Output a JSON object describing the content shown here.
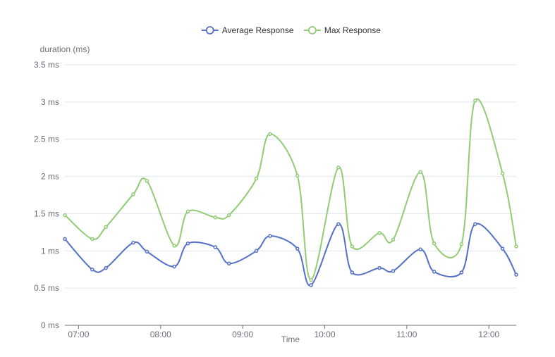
{
  "chart_data": {
    "type": "line",
    "title": "",
    "xlabel": "Time",
    "ylabel": "duration (ms)",
    "ylim": [
      0,
      3.5
    ],
    "yticks": [
      {
        "value": 0,
        "label": "0 ms"
      },
      {
        "value": 0.5,
        "label": "0.5 ms"
      },
      {
        "value": 1,
        "label": "1 ms"
      },
      {
        "value": 1.5,
        "label": "1.5 ms"
      },
      {
        "value": 2,
        "label": "2 ms"
      },
      {
        "value": 2.5,
        "label": "2.5 ms"
      },
      {
        "value": 3,
        "label": "3 ms"
      },
      {
        "value": 3.5,
        "label": "3.5 ms"
      }
    ],
    "xlim": [
      "06:50",
      "12:20"
    ],
    "xticks": [
      "07:00",
      "08:00",
      "09:00",
      "10:00",
      "11:00",
      "12:00"
    ],
    "grid": true,
    "legend_position": "top",
    "x": [
      "06:50",
      "07:10",
      "07:20",
      "07:40",
      "07:50",
      "08:10",
      "08:20",
      "08:40",
      "08:50",
      "09:10",
      "09:20",
      "09:40",
      "09:50",
      "10:10",
      "10:20",
      "10:40",
      "10:50",
      "11:10",
      "11:20",
      "11:40",
      "11:50",
      "12:10",
      "12:20"
    ],
    "series": [
      {
        "name": "Average Response",
        "color": "#5470c6",
        "values": [
          1.16,
          0.75,
          0.77,
          1.11,
          0.99,
          0.79,
          1.1,
          1.05,
          0.83,
          1.0,
          1.2,
          1.03,
          0.54,
          1.36,
          0.71,
          0.77,
          0.73,
          1.02,
          0.72,
          0.71,
          1.36,
          1.03,
          0.68
        ]
      },
      {
        "name": "Max Response",
        "color": "#91cc75",
        "values": [
          1.48,
          1.16,
          1.32,
          1.76,
          1.94,
          1.07,
          1.53,
          1.45,
          1.48,
          1.97,
          2.57,
          2.01,
          0.61,
          2.12,
          1.06,
          1.24,
          1.15,
          2.06,
          1.1,
          1.09,
          3.02,
          2.04,
          1.06
        ]
      }
    ]
  }
}
